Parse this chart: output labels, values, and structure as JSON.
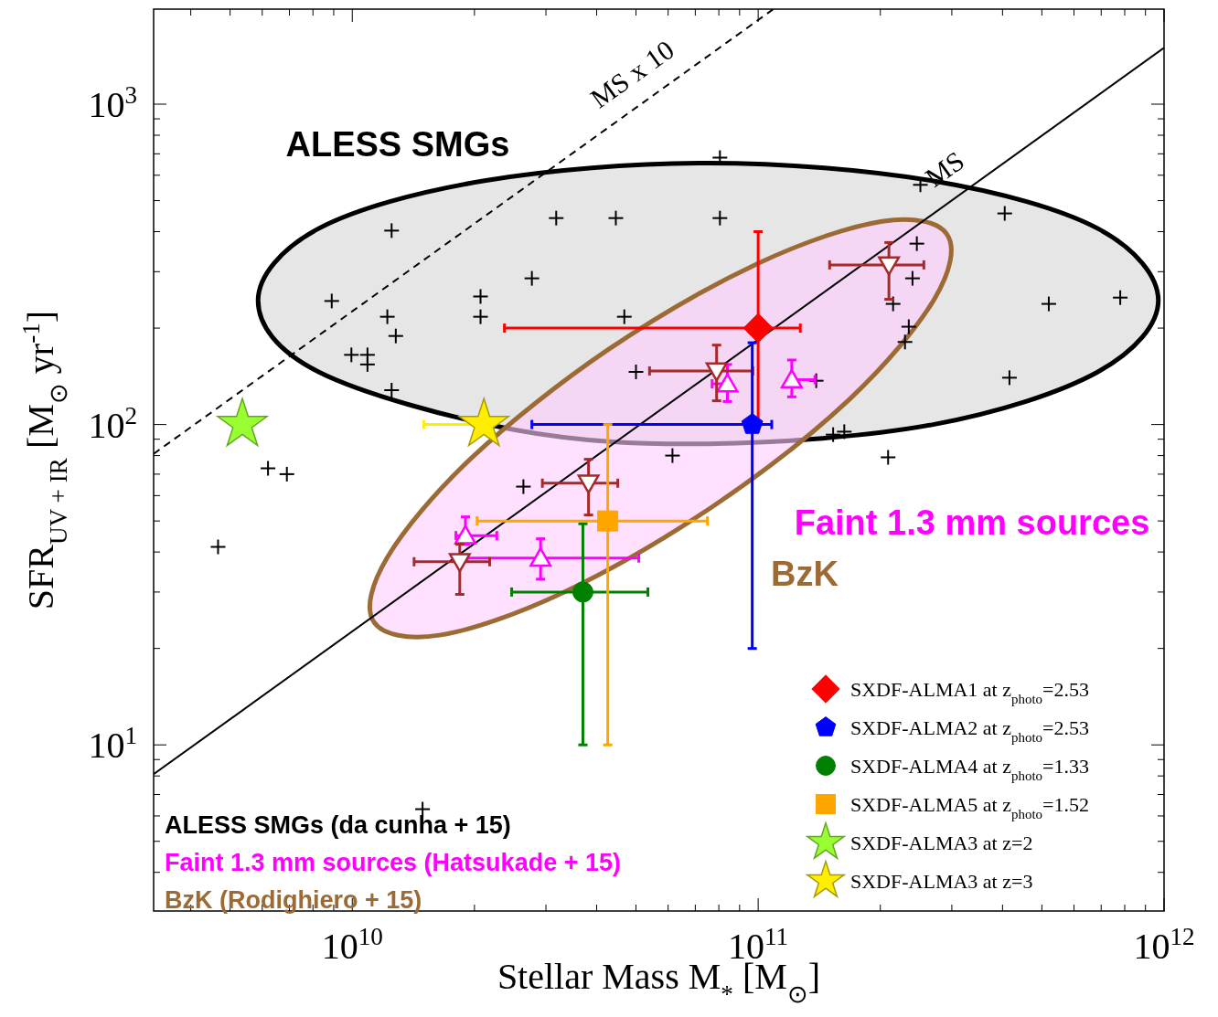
{
  "chart_data": {
    "type": "scatter",
    "xlabel": "Stellar Mass M$_{*}$ [M$_{⊙}$]",
    "ylabel": "SFR$_{UV + IR}$ [M$_{⊙}$ yr$^{-1}$]",
    "log": "xy",
    "grid": false,
    "legend": "bottom right",
    "xlim": [
      3240000000.0,
      1000000000000.0
    ],
    "ylim": [
      3.03,
      1980
    ],
    "xticks": [
      {
        "value": 4000000000.0,
        "label": null
      },
      {
        "value": 5000000000.0,
        "label": null
      },
      {
        "value": 6000000000.0,
        "label": null
      },
      {
        "value": 7000000000.0,
        "label": null
      },
      {
        "value": 8000000000.0,
        "label": null
      },
      {
        "value": 9000000000.0,
        "label": null
      },
      {
        "value": 10000000000.0,
        "label": "10$^{10}$"
      },
      {
        "value": 20000000000.0,
        "label": null
      },
      {
        "value": 30000000000.0,
        "label": null
      },
      {
        "value": 40000000000.0,
        "label": null
      },
      {
        "value": 50000000000.0,
        "label": null
      },
      {
        "value": 60000000000.0,
        "label": null
      },
      {
        "value": 70000000000.0,
        "label": null
      },
      {
        "value": 80000000000.0,
        "label": null
      },
      {
        "value": 90000000000.0,
        "label": null
      },
      {
        "value": 100000000000.0,
        "label": "10$^{11}$"
      },
      {
        "value": 200000000000.0,
        "label": null
      },
      {
        "value": 300000000000.0,
        "label": null
      },
      {
        "value": 400000000000.0,
        "label": null
      },
      {
        "value": 500000000000.0,
        "label": null
      },
      {
        "value": 600000000000.0,
        "label": null
      },
      {
        "value": 700000000000.0,
        "label": null
      },
      {
        "value": 800000000000.0,
        "label": null
      },
      {
        "value": 900000000000.0,
        "label": null
      },
      {
        "value": 1000000000000.0,
        "label": "10$^{12}$"
      }
    ],
    "yticks": [
      {
        "value": 4,
        "label": null
      },
      {
        "value": 5,
        "label": null
      },
      {
        "value": 6,
        "label": null
      },
      {
        "value": 7,
        "label": null
      },
      {
        "value": 8,
        "label": null
      },
      {
        "value": 9,
        "label": null
      },
      {
        "value": 10,
        "label": "10$^{1}$"
      },
      {
        "value": 20,
        "label": null
      },
      {
        "value": 30,
        "label": null
      },
      {
        "value": 40,
        "label": null
      },
      {
        "value": 50,
        "label": null
      },
      {
        "value": 60,
        "label": null
      },
      {
        "value": 70,
        "label": null
      },
      {
        "value": 80,
        "label": null
      },
      {
        "value": 90,
        "label": null
      },
      {
        "value": 100,
        "label": "10$^{2}$"
      },
      {
        "value": 200,
        "label": null
      },
      {
        "value": 300,
        "label": null
      },
      {
        "value": 400,
        "label": null
      },
      {
        "value": 500,
        "label": null
      },
      {
        "value": 600,
        "label": null
      },
      {
        "value": 700,
        "label": null
      },
      {
        "value": 800,
        "label": null
      },
      {
        "value": 900,
        "label": null
      },
      {
        "value": 1000,
        "label": "10$^{3}$"
      }
    ],
    "annotations": [
      "ALESS SMGs",
      "Faint 1.3 mm sources",
      "BzK"
    ],
    "series": [
      {
        "type": "area",
        "color": "#000000",
        "x": [
          968000000000.0,
          687000000000.0,
          270000000000.0,
          75300000000.0,
          21000000000.0,
          8260000000.0,
          5860000000.0,
          8260000000.0,
          25000000000.0,
          75300000000.0,
          270000000000.0,
          687000000000.0
        ],
        "values": [
          244,
          409,
          576,
          655,
          576,
          409,
          244,
          146,
          96.4,
          87.1,
          100,
          146
        ]
      },
      {
        "type": "line",
        "name": "MS",
        "color": "#000000",
        "line_style": "solid",
        "x": [
          3240000000.0,
          1000000000000.0
        ],
        "values": [
          8.1,
          1500
        ]
      },
      {
        "type": "line",
        "name": "MS x 10",
        "color": "#000000",
        "line_style": "dashed",
        "x": [
          3240000000.0,
          109000000000.0
        ],
        "values": [
          81,
          1980
        ]
      },
      {
        "name": "ALESS SMGs (da cunha + 15)",
        "color": "#000000",
        "marker": "cross",
        "x": [
          12500000000.0,
          8900000000.0,
          12200000000.0,
          12800000000.0,
          9950000000.0,
          10900000000.0,
          10900000000.0,
          12500000000.0,
          20700000000.0,
          20700000000.0,
          27700000000.0,
          6200000000.0,
          6900000000.0,
          26400000000.0,
          4670000000.0,
          31800000000.0,
          44600000000.0,
          80500000000.0,
          80500000000.0,
          46800000000.0,
          50000000000.0,
          61500000000.0,
          251000000000.0,
          405000000000.0,
          246000000000.0,
          240000000000.0,
          215000000000.0,
          235000000000.0,
          230000000000.0,
          520000000000.0,
          780000000000.0,
          416000000000.0,
          139000000000.0,
          153000000000.0,
          163000000000.0,
          209000000000.0,
          14900000000.0
        ],
        "values": [
          403,
          243,
          217,
          189,
          165,
          165,
          154,
          128,
          251,
          217,
          286,
          73,
          70,
          64,
          41.5,
          441,
          441,
          441,
          681,
          217,
          146,
          80,
          560,
          456,
          367,
          286,
          238,
          202,
          181,
          238,
          249,
          140,
          137,
          93,
          95,
          79,
          6.3
        ]
      },
      {
        "name": "Faint 1.3 mm sources (Hatsukade + 15)",
        "color": "#ff00ff",
        "marker": "triangle",
        "x": [
          84000000000.0,
          121000000000.0,
          19000000000.0,
          29100000000.0
        ],
        "values": [
          134,
          138,
          45,
          38.3
        ],
        "errors": [
          [
            118,
            154
          ],
          [
            122,
            159
          ],
          [
            42.3,
            51.5
          ],
          [
            32.9,
            44
          ]
        ],
        "xerrors": [
          [
            77000000000.0,
            84000000000.0
          ],
          [
            121000000000.0,
            138000000000.0
          ],
          [
            18000000000.0,
            22700000000.0
          ],
          [
            19200000000.0,
            50800000000.0
          ]
        ]
      },
      {
        "type": "area",
        "name": "BzK (Rodighiero + 15)",
        "color": "#9c6b35",
        "x": [
          292000000000.0,
          272000000000.0,
          168000000000.0,
          77600000000.0,
          33100000000.0,
          16400000000.0,
          11300000000.0,
          12200000000.0,
          19700000000.0,
          42600000000.0,
          99700000000.0,
          202000000000.0
        ],
        "values": [
          392,
          247,
          120,
          55.7,
          29.9,
          22.0,
          24.2,
          38.5,
          78.8,
          171,
          318,
          431
        ]
      },
      {
        "color": "#a52a2a",
        "marker": "triangle-down",
        "x": [
          38200000000.0,
          18400000000.0,
          79000000000.0,
          210000000000.0
        ],
        "values": [
          65.6,
          37.3,
          147,
          315
        ],
        "errors": [
          [
            52.2,
            77.9
          ],
          [
            29.5,
            42.3
          ],
          [
            118.6,
            177
          ],
          [
            246,
            370
          ]
        ],
        "xerrors": [
          [
            29400000000.0,
            45100000000.0
          ],
          [
            14200000000.0,
            21800000000.0
          ],
          [
            54000000000.0,
            97000000000.0
          ],
          [
            150000000000.0,
            256000000000.0
          ]
        ]
      },
      {
        "name": "SXDF-ALMA1 at z$_{photo}$=2.53",
        "color": "#ff0000",
        "marker": "diamond",
        "x": [
          100000000000.0
        ],
        "values": [
          200
        ],
        "errors": [
          [
            100,
            400
          ]
        ],
        "xerrors": [
          [
            23700000000.0,
            127000000000.0
          ]
        ]
      },
      {
        "name": "SXDF-ALMA2 at z$_{photo}$=2.53",
        "color": "#0000ff",
        "x": [
          96700000000.0
        ],
        "values": [
          100
        ],
        "errors": [
          [
            20,
            180
          ]
        ],
        "xerrors": [
          [
            27700000000.0,
            108000000000.0
          ]
        ]
      },
      {
        "name": "SXDF-ALMA4 at z$_{photo}$=1.33",
        "color": "#008000",
        "marker": "circle",
        "x": [
          37000000000.0
        ],
        "values": [
          30
        ],
        "errors": [
          [
            10,
            49
          ]
        ],
        "xerrors": [
          [
            24700000000.0,
            53500000000.0
          ]
        ]
      },
      {
        "name": "SXDF-ALMA5 at z$_{photo}$=1.52",
        "color": "#ffa500",
        "marker": "square",
        "x": [
          42600000000.0
        ],
        "values": [
          50
        ],
        "errors": [
          [
            10,
            100
          ]
        ],
        "xerrors": [
          [
            20300000000.0,
            75000000000.0
          ]
        ]
      },
      {
        "name": "SXDF-ALMA3 at z=2",
        "color": "#99ff33",
        "marker": "star",
        "x": [
          5360000000.0
        ],
        "values": [
          100
        ]
      },
      {
        "name": "SXDF-ALMA3 at z=3",
        "color": "#ffee00",
        "marker": "star",
        "x": [
          21100000000.0
        ],
        "values": [
          100
        ],
        "xerrors": [
          [
            15000000000.0,
            21100000000.0
          ]
        ]
      }
    ]
  }
}
